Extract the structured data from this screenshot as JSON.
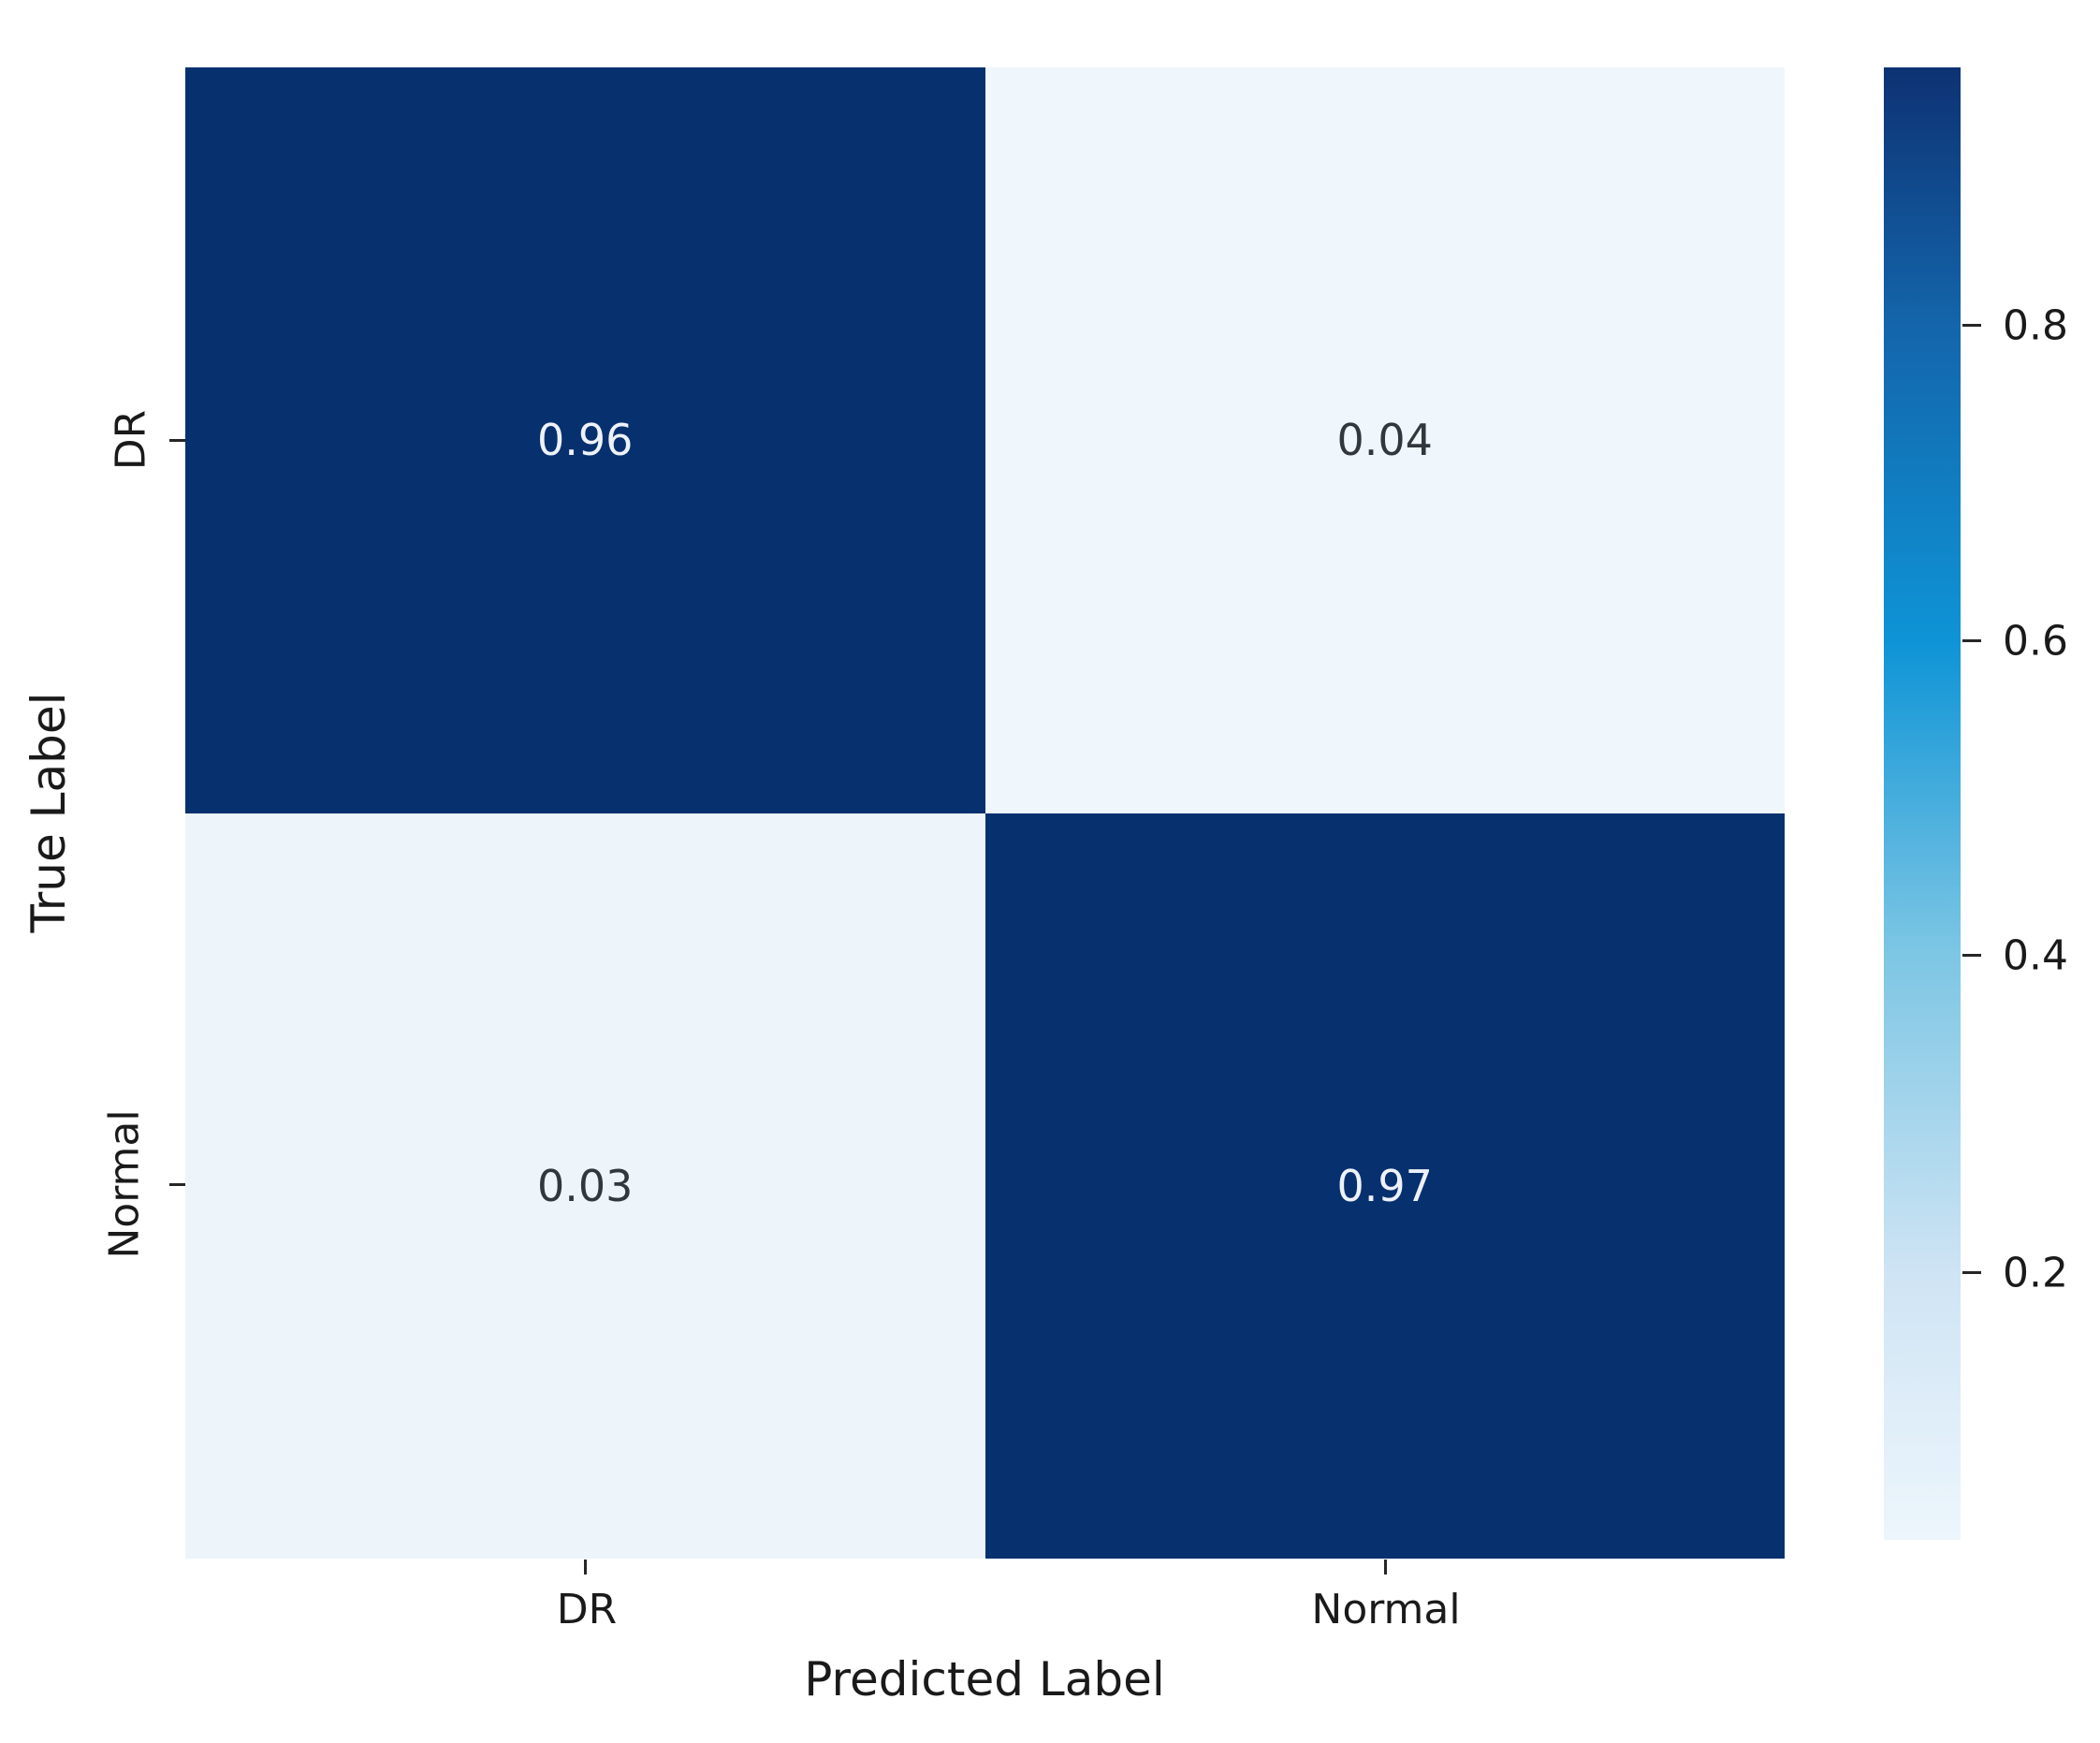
{
  "chart_data": {
    "type": "heatmap",
    "title": "",
    "xlabel": "Predicted Label",
    "ylabel": "True Label",
    "x_categories": [
      "DR",
      "Normal"
    ],
    "y_categories": [
      "DR",
      "Normal"
    ],
    "matrix": [
      [
        0.96,
        0.04
      ],
      [
        0.03,
        0.97
      ]
    ],
    "value_range": [
      0.03,
      0.97
    ],
    "colormap": "Blues",
    "grid": false,
    "legend_position": "right-colorbar",
    "cells": [
      {
        "row": "DR",
        "col": "DR",
        "value": 0.96,
        "label": "0.96",
        "bg": "#07306e",
        "fg": "#eef2f8",
        "style": "background:#07306e;color:#eef2f8"
      },
      {
        "row": "DR",
        "col": "Normal",
        "value": 0.04,
        "label": "0.04",
        "bg": "#eff6fc",
        "fg": "#32373c",
        "style": "background:#eff6fc;color:#32373c"
      },
      {
        "row": "Normal",
        "col": "DR",
        "value": 0.03,
        "label": "0.03",
        "bg": "#edf5fb",
        "fg": "#32373c",
        "style": "background:#edf5fb;color:#32373c"
      },
      {
        "row": "Normal",
        "col": "Normal",
        "value": 0.97,
        "label": "0.97",
        "bg": "#07306e",
        "fg": "#eef2f8",
        "style": "background:#07306e;color:#eef2f8"
      }
    ],
    "colorbar": {
      "tick_labels": [
        "0.8",
        "0.6",
        "0.4",
        "0.2"
      ],
      "tick_values": [
        0.8,
        0.6,
        0.4,
        0.2
      ],
      "gradient_top_to_bottom": [
        "#0d3273",
        "#1465ab",
        "#0e94d6",
        "#7cc6e4",
        "#cfe4f4",
        "#edf6fc"
      ],
      "style": "background:linear-gradient(180deg,#0d3273 0%,#1465ab 17.5%,#0e94d6 39%,#7cc6e4 60%,#cfe4f4 82%,#edf6fc 100%)"
    }
  }
}
